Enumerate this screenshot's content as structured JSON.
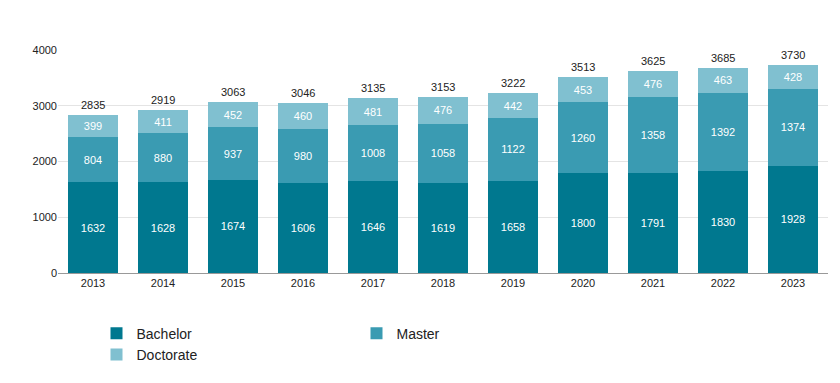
{
  "chart_data": {
    "type": "bar",
    "stacked": true,
    "data_labels": true,
    "grid": true,
    "legend": "bottom",
    "categories": [
      "2013",
      "2014",
      "2015",
      "2016",
      "2017",
      "2018",
      "2019",
      "2020",
      "2021",
      "2022",
      "2023"
    ],
    "series": [
      {
        "name": "Bachelor",
        "color": "#00788f",
        "values": [
          1632,
          1628,
          1674,
          1606,
          1646,
          1619,
          1658,
          1800,
          1791,
          1830,
          1928
        ]
      },
      {
        "name": "Master",
        "color": "#3a9bb2",
        "values": [
          804,
          880,
          937,
          980,
          1008,
          1058,
          1122,
          1260,
          1358,
          1392,
          1374
        ]
      },
      {
        "name": "Doctorate",
        "color": "#80c0d0",
        "values": [
          399,
          411,
          452,
          460,
          481,
          476,
          442,
          453,
          476,
          463,
          428
        ]
      }
    ],
    "totals": [
      2835,
      2919,
      3063,
      3046,
      3135,
      3153,
      3222,
      3513,
      3625,
      3685,
      3730
    ],
    "ylim": [
      0,
      4000
    ],
    "yticks": [
      0,
      1000,
      2000,
      3000,
      4000
    ]
  }
}
